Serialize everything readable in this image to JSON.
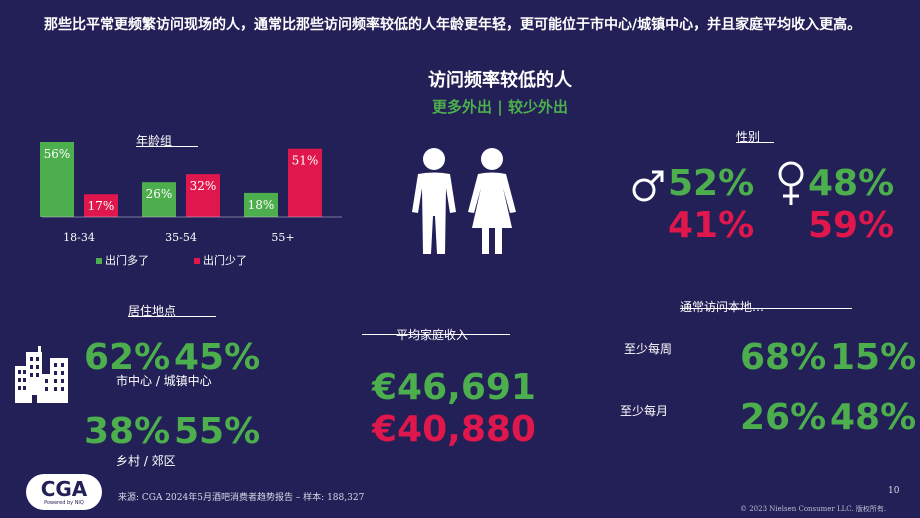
{
  "headline": "那些比平常更频繁访问现场的人，通常比那些访问频率较低的人年龄更年轻，更可能位于市中心/城镇中心，并且家庭平均收入更高。",
  "center": {
    "title": "访问频率较低的人",
    "subtitle": "更多外出 | 较少外出"
  },
  "age": {
    "title": "年龄组",
    "legend_more": "出门多了",
    "legend_less": "出门少了"
  },
  "colors": {
    "more": "#4cae4c",
    "less": "#e0174c",
    "background": "#222056"
  },
  "chart_data": {
    "type": "bar",
    "categories": [
      "18-34",
      "35-54",
      "55+"
    ],
    "series": [
      {
        "name": "出门多了",
        "values": [
          56,
          26,
          18
        ],
        "labels": [
          "56%",
          "26%",
          "18%"
        ]
      },
      {
        "name": "出门少了",
        "values": [
          17,
          32,
          51
        ],
        "labels": [
          "17%",
          "32%",
          "51%"
        ]
      }
    ],
    "title": "年龄组",
    "ylim": [
      0,
      60
    ]
  },
  "gender": {
    "title": "性别",
    "male_icon": "male-symbol-icon",
    "female_icon": "female-symbol-icon",
    "male_more": "52%",
    "male_less": "41%",
    "female_more": "48%",
    "female_less": "59%"
  },
  "location": {
    "title": "居住地点",
    "icon": "city-buildings-icon",
    "city_more": "62%",
    "city_less": "45%",
    "city_label": "市中心 / 城镇中心",
    "rural_more": "38%",
    "rural_less": "55%",
    "rural_label": "乡村 / 郊区"
  },
  "income": {
    "title": "平均家庭收入",
    "more": "€46,691",
    "less": "€40,880"
  },
  "local": {
    "title": "通常访问本地…",
    "weekly_label": "至少每周",
    "weekly_more": "68%",
    "weekly_less": "15%",
    "monthly_label": "至少每月",
    "monthly_more": "26%",
    "monthly_less": "48%"
  },
  "footer": {
    "logo_text": "CGA",
    "logo_sub": "Powered by NIQ",
    "source": "来源: CGA 2024年5月酒吧消费者趋势报告 – 样本: 188,327",
    "page": "10",
    "copyright": "© 2023 Nielsen Consumer LLC. 版权所有."
  }
}
